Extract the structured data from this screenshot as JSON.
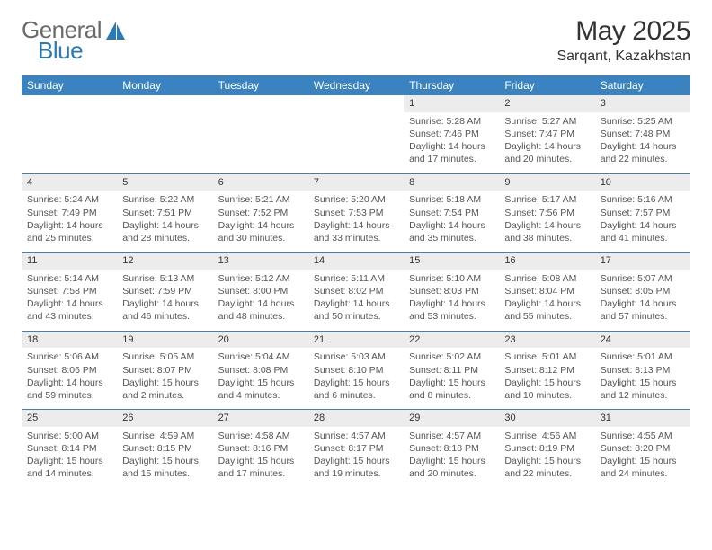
{
  "logo": {
    "part1": "General",
    "part2": "Blue"
  },
  "title": "May 2025",
  "location": "Sarqant, Kazakhstan",
  "weekday_headers": [
    "Sunday",
    "Monday",
    "Tuesday",
    "Wednesday",
    "Thursday",
    "Friday",
    "Saturday"
  ],
  "colors": {
    "header_band": "#3b83c0",
    "date_band": "#ececec",
    "row_rule": "#3b83c0",
    "logo_blue": "#2a7ab8",
    "text": "#222222",
    "muted": "#555555",
    "background": "#ffffff"
  },
  "weeks": [
    [
      {
        "empty": true
      },
      {
        "empty": true
      },
      {
        "empty": true
      },
      {
        "empty": true
      },
      {
        "date": "1",
        "sunrise": "Sunrise: 5:28 AM",
        "sunset": "Sunset: 7:46 PM",
        "daylight": "Daylight: 14 hours and 17 minutes."
      },
      {
        "date": "2",
        "sunrise": "Sunrise: 5:27 AM",
        "sunset": "Sunset: 7:47 PM",
        "daylight": "Daylight: 14 hours and 20 minutes."
      },
      {
        "date": "3",
        "sunrise": "Sunrise: 5:25 AM",
        "sunset": "Sunset: 7:48 PM",
        "daylight": "Daylight: 14 hours and 22 minutes."
      }
    ],
    [
      {
        "date": "4",
        "sunrise": "Sunrise: 5:24 AM",
        "sunset": "Sunset: 7:49 PM",
        "daylight": "Daylight: 14 hours and 25 minutes."
      },
      {
        "date": "5",
        "sunrise": "Sunrise: 5:22 AM",
        "sunset": "Sunset: 7:51 PM",
        "daylight": "Daylight: 14 hours and 28 minutes."
      },
      {
        "date": "6",
        "sunrise": "Sunrise: 5:21 AM",
        "sunset": "Sunset: 7:52 PM",
        "daylight": "Daylight: 14 hours and 30 minutes."
      },
      {
        "date": "7",
        "sunrise": "Sunrise: 5:20 AM",
        "sunset": "Sunset: 7:53 PM",
        "daylight": "Daylight: 14 hours and 33 minutes."
      },
      {
        "date": "8",
        "sunrise": "Sunrise: 5:18 AM",
        "sunset": "Sunset: 7:54 PM",
        "daylight": "Daylight: 14 hours and 35 minutes."
      },
      {
        "date": "9",
        "sunrise": "Sunrise: 5:17 AM",
        "sunset": "Sunset: 7:56 PM",
        "daylight": "Daylight: 14 hours and 38 minutes."
      },
      {
        "date": "10",
        "sunrise": "Sunrise: 5:16 AM",
        "sunset": "Sunset: 7:57 PM",
        "daylight": "Daylight: 14 hours and 41 minutes."
      }
    ],
    [
      {
        "date": "11",
        "sunrise": "Sunrise: 5:14 AM",
        "sunset": "Sunset: 7:58 PM",
        "daylight": "Daylight: 14 hours and 43 minutes."
      },
      {
        "date": "12",
        "sunrise": "Sunrise: 5:13 AM",
        "sunset": "Sunset: 7:59 PM",
        "daylight": "Daylight: 14 hours and 46 minutes."
      },
      {
        "date": "13",
        "sunrise": "Sunrise: 5:12 AM",
        "sunset": "Sunset: 8:00 PM",
        "daylight": "Daylight: 14 hours and 48 minutes."
      },
      {
        "date": "14",
        "sunrise": "Sunrise: 5:11 AM",
        "sunset": "Sunset: 8:02 PM",
        "daylight": "Daylight: 14 hours and 50 minutes."
      },
      {
        "date": "15",
        "sunrise": "Sunrise: 5:10 AM",
        "sunset": "Sunset: 8:03 PM",
        "daylight": "Daylight: 14 hours and 53 minutes."
      },
      {
        "date": "16",
        "sunrise": "Sunrise: 5:08 AM",
        "sunset": "Sunset: 8:04 PM",
        "daylight": "Daylight: 14 hours and 55 minutes."
      },
      {
        "date": "17",
        "sunrise": "Sunrise: 5:07 AM",
        "sunset": "Sunset: 8:05 PM",
        "daylight": "Daylight: 14 hours and 57 minutes."
      }
    ],
    [
      {
        "date": "18",
        "sunrise": "Sunrise: 5:06 AM",
        "sunset": "Sunset: 8:06 PM",
        "daylight": "Daylight: 14 hours and 59 minutes."
      },
      {
        "date": "19",
        "sunrise": "Sunrise: 5:05 AM",
        "sunset": "Sunset: 8:07 PM",
        "daylight": "Daylight: 15 hours and 2 minutes."
      },
      {
        "date": "20",
        "sunrise": "Sunrise: 5:04 AM",
        "sunset": "Sunset: 8:08 PM",
        "daylight": "Daylight: 15 hours and 4 minutes."
      },
      {
        "date": "21",
        "sunrise": "Sunrise: 5:03 AM",
        "sunset": "Sunset: 8:10 PM",
        "daylight": "Daylight: 15 hours and 6 minutes."
      },
      {
        "date": "22",
        "sunrise": "Sunrise: 5:02 AM",
        "sunset": "Sunset: 8:11 PM",
        "daylight": "Daylight: 15 hours and 8 minutes."
      },
      {
        "date": "23",
        "sunrise": "Sunrise: 5:01 AM",
        "sunset": "Sunset: 8:12 PM",
        "daylight": "Daylight: 15 hours and 10 minutes."
      },
      {
        "date": "24",
        "sunrise": "Sunrise: 5:01 AM",
        "sunset": "Sunset: 8:13 PM",
        "daylight": "Daylight: 15 hours and 12 minutes."
      }
    ],
    [
      {
        "date": "25",
        "sunrise": "Sunrise: 5:00 AM",
        "sunset": "Sunset: 8:14 PM",
        "daylight": "Daylight: 15 hours and 14 minutes."
      },
      {
        "date": "26",
        "sunrise": "Sunrise: 4:59 AM",
        "sunset": "Sunset: 8:15 PM",
        "daylight": "Daylight: 15 hours and 15 minutes."
      },
      {
        "date": "27",
        "sunrise": "Sunrise: 4:58 AM",
        "sunset": "Sunset: 8:16 PM",
        "daylight": "Daylight: 15 hours and 17 minutes."
      },
      {
        "date": "28",
        "sunrise": "Sunrise: 4:57 AM",
        "sunset": "Sunset: 8:17 PM",
        "daylight": "Daylight: 15 hours and 19 minutes."
      },
      {
        "date": "29",
        "sunrise": "Sunrise: 4:57 AM",
        "sunset": "Sunset: 8:18 PM",
        "daylight": "Daylight: 15 hours and 20 minutes."
      },
      {
        "date": "30",
        "sunrise": "Sunrise: 4:56 AM",
        "sunset": "Sunset: 8:19 PM",
        "daylight": "Daylight: 15 hours and 22 minutes."
      },
      {
        "date": "31",
        "sunrise": "Sunrise: 4:55 AM",
        "sunset": "Sunset: 8:20 PM",
        "daylight": "Daylight: 15 hours and 24 minutes."
      }
    ]
  ]
}
